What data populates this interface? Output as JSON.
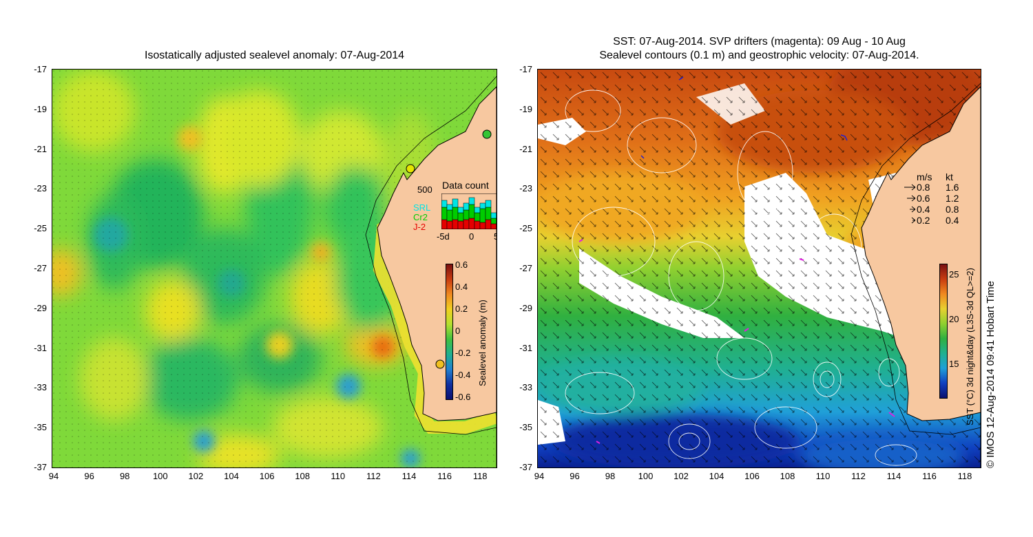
{
  "left_panel": {
    "title": "Isostatically adjusted sealevel anomaly: 07-Aug-2014",
    "x_ticks": [
      "94",
      "96",
      "98",
      "100",
      "102",
      "104",
      "106",
      "108",
      "110",
      "112",
      "114",
      "116",
      "118"
    ],
    "y_ticks": [
      "-17",
      "-19",
      "-21",
      "-23",
      "-25",
      "-27",
      "-29",
      "-31",
      "-33",
      "-35",
      "-37"
    ],
    "colorbar": {
      "label": "Sealevel anomaly (m)",
      "ticks": [
        "0.6",
        "0.4",
        "0.2",
        "0",
        "-0.2",
        "-0.4",
        "-0.6"
      ]
    },
    "data_count": {
      "title": "Data count",
      "y_tick": "500",
      "x_ticks": [
        "-5d",
        "0",
        "5"
      ],
      "legend": [
        {
          "name": "SRL",
          "color": "#00e5e5"
        },
        {
          "name": "Cr2",
          "color": "#00cc00"
        },
        {
          "name": "J-2",
          "color": "#e50000"
        }
      ]
    }
  },
  "right_panel": {
    "title_line1": "SST: 07-Aug-2014. SVP drifters (magenta): 09 Aug - 10 Aug",
    "title_line2": "Sealevel contours (0.1 m) and geostrophic velocity: 07-Aug-2014.",
    "x_ticks": [
      "94",
      "96",
      "98",
      "100",
      "102",
      "104",
      "106",
      "108",
      "110",
      "112",
      "114",
      "116",
      "118"
    ],
    "y_ticks": [
      "-17",
      "-19",
      "-21",
      "-23",
      "-25",
      "-27",
      "-29",
      "-31",
      "-33",
      "-35",
      "-37"
    ],
    "velocity_legend": {
      "header_ms": "m/s",
      "header_kt": "kt",
      "rows": [
        {
          "ms": "0.8",
          "kt": "1.6"
        },
        {
          "ms": "0.6",
          "kt": "1.2"
        },
        {
          "ms": "0.4",
          "kt": "0.8"
        },
        {
          "ms": "0.2",
          "kt": "0.4"
        }
      ]
    },
    "colorbar": {
      "label": "SST (°C) 3d night&day (L3S-3d QL>=2)",
      "ticks": [
        "25",
        "20",
        "15"
      ]
    }
  },
  "footer": {
    "credit": "© IMOS 12-Aug-2014 09:41 Hobart Time"
  },
  "colors": {
    "land": "#f7c8a0",
    "ssh_green": "#35c535",
    "ssh_yellow": "#e5e500",
    "sst_red": "#c84a10",
    "sst_blue": "#0030c8"
  }
}
